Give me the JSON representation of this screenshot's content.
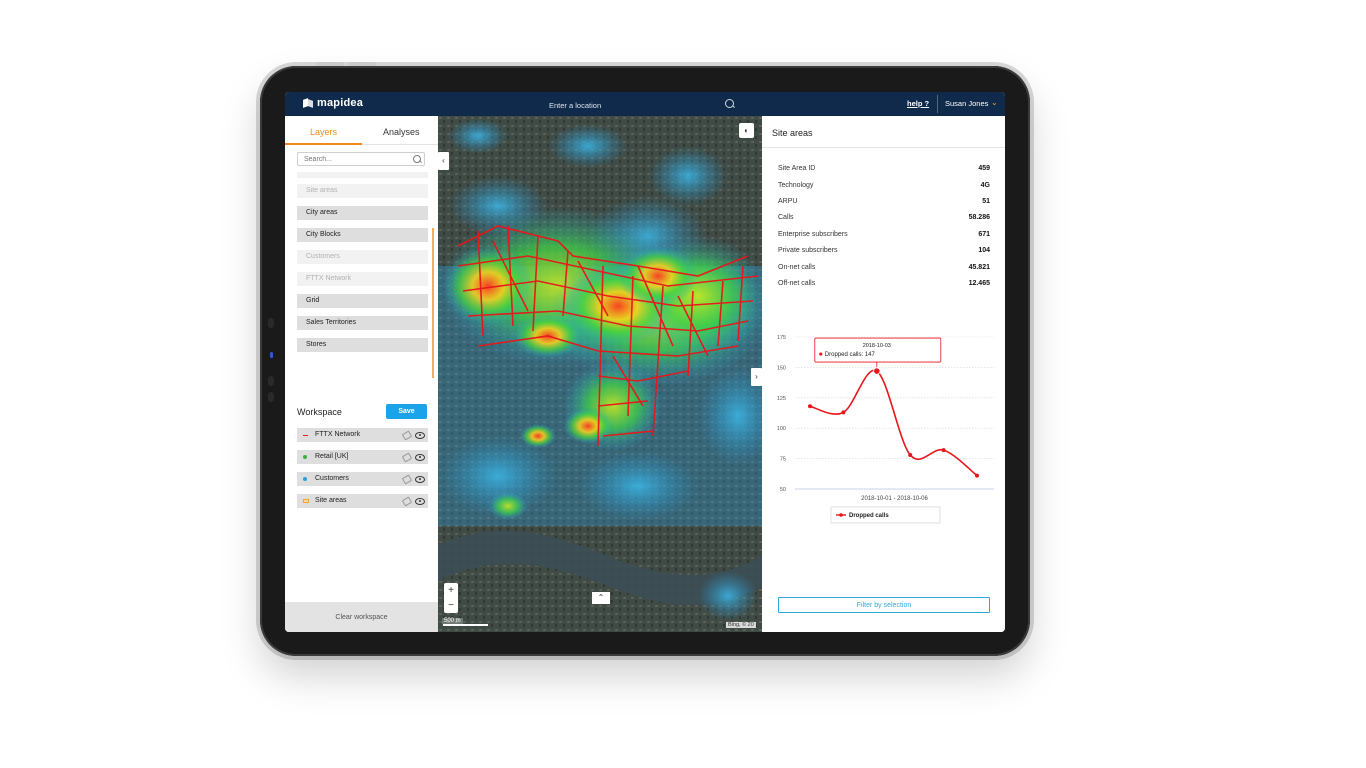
{
  "header": {
    "logo": "mapidea",
    "location_placeholder": "Enter a location",
    "help": "help ?",
    "user": "Susan Jones"
  },
  "left_panel": {
    "tabs": [
      {
        "label": "Layers",
        "active": true
      },
      {
        "label": "Analyses",
        "active": false
      }
    ],
    "search_placeholder": "Search...",
    "layers": [
      {
        "label": "Site areas",
        "enabled": false
      },
      {
        "label": "City areas",
        "enabled": true
      },
      {
        "label": "City Blocks",
        "enabled": true
      },
      {
        "label": "Customers",
        "enabled": false
      },
      {
        "label": "FTTX Network",
        "enabled": false
      },
      {
        "label": "Grid",
        "enabled": true
      },
      {
        "label": "Sales Territories",
        "enabled": true
      },
      {
        "label": "Stores",
        "enabled": true
      }
    ],
    "workspace_title": "Workspace",
    "save_label": "Save",
    "workspace_items": [
      {
        "label": "FTTX Network",
        "symbol": "line",
        "color": "#e22222"
      },
      {
        "label": "Retail [UK]",
        "symbol": "dot",
        "color": "#3cb043"
      },
      {
        "label": "Customers",
        "symbol": "dot",
        "color": "#2e9fd8"
      },
      {
        "label": "Site areas",
        "symbol": "rect",
        "color": "#f2a33a"
      }
    ],
    "clear_label": "Clear workspace"
  },
  "map": {
    "scale_label": "500 m",
    "attribution": "Bing, © 20",
    "zoom_in": "+",
    "zoom_out": "−",
    "collapse_left_icon": "‹",
    "collapse_right_icon": "›",
    "bottom_toggle_icon": "⌃"
  },
  "right_panel": {
    "title": "Site areas",
    "fields": [
      {
        "label": "Site Area ID",
        "value": "459"
      },
      {
        "label": "Technology",
        "value": "4G"
      },
      {
        "label": "ARPU",
        "value": "51"
      },
      {
        "label": "Calls",
        "value": "58.286"
      },
      {
        "label": "Enterprise subscribers",
        "value": "671"
      },
      {
        "label": "Private subscribers",
        "value": "104"
      },
      {
        "label": "On-net calls",
        "value": "45.821"
      },
      {
        "label": "Off-net calls",
        "value": "12.465"
      }
    ],
    "filter_label": "Filter by selection"
  },
  "chart_data": {
    "type": "line",
    "x": [
      "2018-10-01",
      "2018-10-02",
      "2018-10-03",
      "2018-10-04",
      "2018-10-05",
      "2018-10-06"
    ],
    "series": [
      {
        "name": "Dropped calls",
        "values": [
          118,
          113,
          147,
          78,
          82,
          61
        ],
        "color": "#e8161b"
      }
    ],
    "yticks": [
      50,
      75,
      100,
      125,
      150,
      175
    ],
    "ylim": [
      50,
      175
    ],
    "xlabel": "2018-10-01 - 2018-10-06",
    "tooltip": {
      "date": "2018-10-03",
      "text": "Dropped calls: 147"
    },
    "legend": "bottom",
    "grid": true
  }
}
